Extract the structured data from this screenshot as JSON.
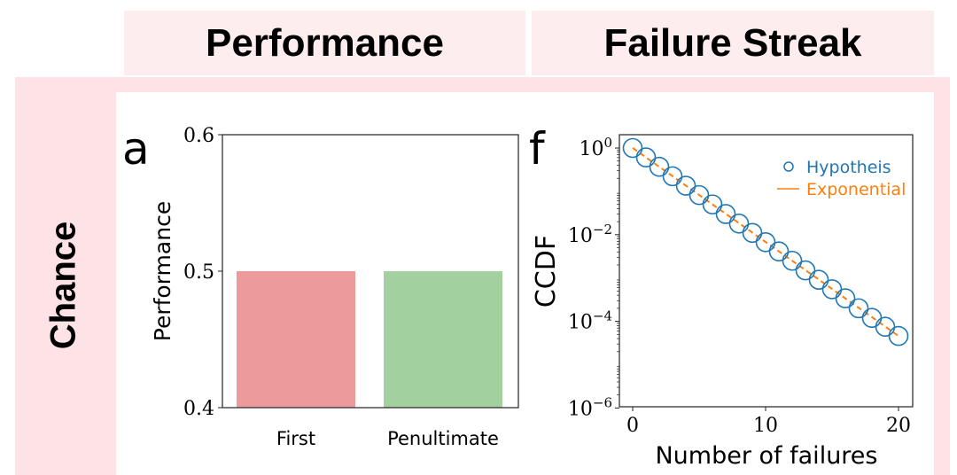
{
  "headers": {
    "col1": "Performance",
    "col2": "Failure Streak",
    "row": "Chance"
  },
  "chart_data": [
    {
      "type": "bar",
      "panel_label": "a",
      "categories": [
        "First",
        "Penultimate"
      ],
      "values": [
        0.5,
        0.5
      ],
      "colors": [
        "#ec9a9a",
        "#a2d09e"
      ],
      "xlabel": "",
      "ylabel": "Performance",
      "ylim": [
        0.4,
        0.6
      ],
      "yticks": [
        "0.4",
        "0.5",
        "0.6"
      ]
    },
    {
      "type": "scatter",
      "panel_label": "f",
      "xlabel": "Number of failures",
      "ylabel": "CCDF",
      "yscale": "log",
      "xlim": [
        -1,
        20.5
      ],
      "ylim_log10": [
        -6,
        0.3
      ],
      "xticks": [
        "0",
        "10",
        "20"
      ],
      "yticks": [
        {
          "base": "10",
          "exp": "0"
        },
        {
          "base": "10",
          "exp": "−2"
        },
        {
          "base": "10",
          "exp": "−4"
        },
        {
          "base": "10",
          "exp": "−6"
        }
      ],
      "legend_position": "top-right",
      "series": [
        {
          "name": "Hypotheis",
          "kind": "markers",
          "color": "#1f77b4",
          "x": [
            0,
            1,
            2,
            3,
            4,
            5,
            6,
            7,
            8,
            9,
            10,
            11,
            12,
            13,
            14,
            15,
            16,
            17,
            18,
            19,
            20
          ],
          "y": [
            1,
            0.607,
            0.368,
            0.223,
            0.135,
            0.082,
            0.05,
            0.03,
            0.018,
            0.011,
            0.0067,
            0.0041,
            0.0025,
            0.0015,
            0.00091,
            0.00055,
            0.00034,
            0.0002,
            0.00012,
            7.5e-05,
            4.6e-05
          ]
        },
        {
          "name": "Exponential",
          "kind": "dashed-line",
          "color": "#ff7f0e",
          "x": [
            0,
            20
          ],
          "y": [
            1,
            4.6e-05
          ]
        }
      ]
    }
  ]
}
